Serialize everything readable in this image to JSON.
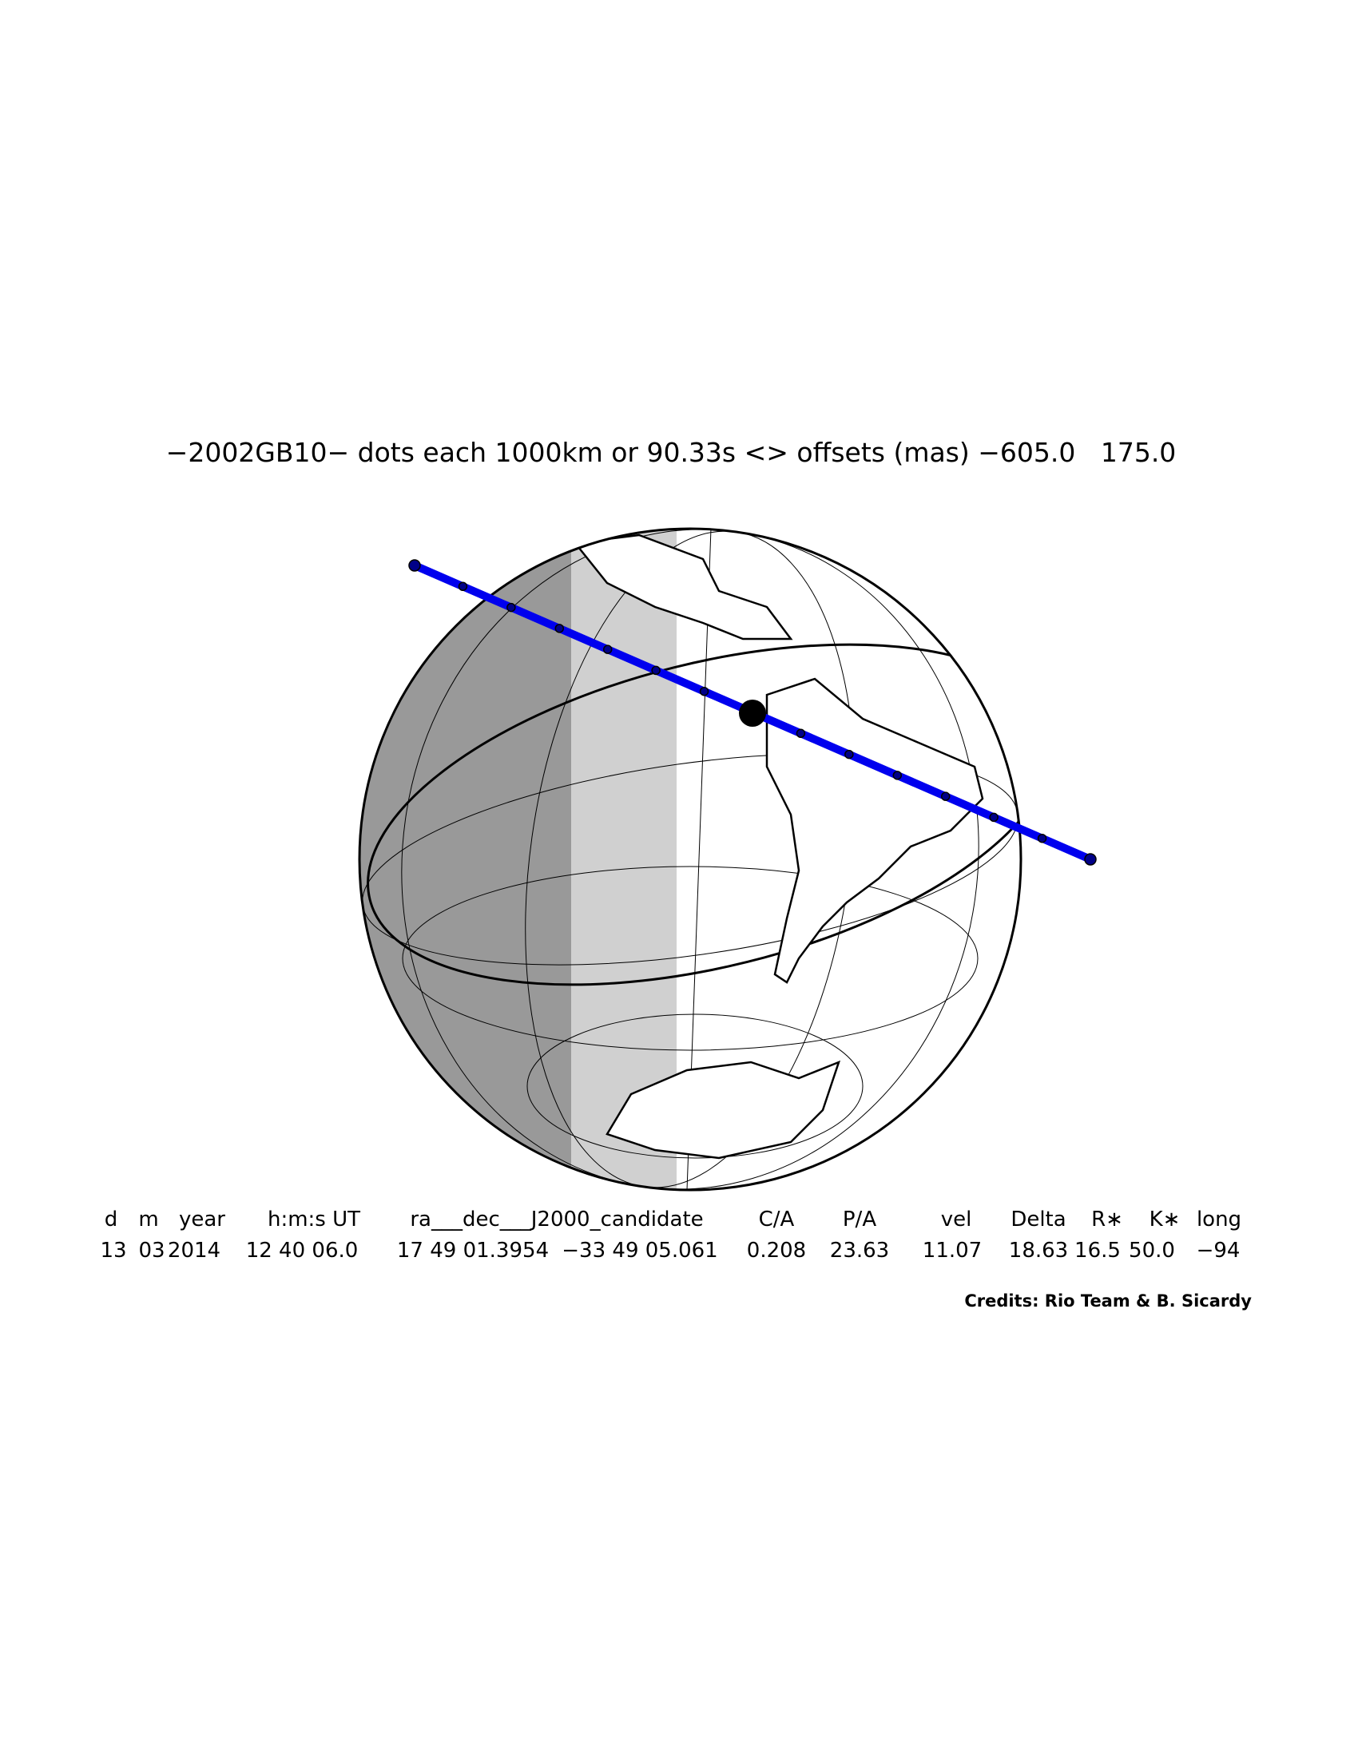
{
  "header": {
    "title": "−2002GB10− dots each 1000km or 90.33s <> offsets (mas) −605.0   175.0"
  },
  "table": {
    "columns": [
      "d",
      "m",
      "year",
      "h:m:s UT",
      "ra___dec___J2000_candidate",
      "C/A",
      "P/A",
      "vel",
      "Delta",
      "R∗",
      "K∗",
      "long"
    ],
    "values": [
      "13",
      "03",
      "2014",
      "12 40 06.0",
      "17 49 01.3954",
      "−33 49 05.061",
      "0.208",
      "23.63",
      "11.07",
      "18.63",
      "16.5",
      "50.0",
      "−94"
    ]
  },
  "credits": "Credits: Rio Team & B. Sicardy"
}
